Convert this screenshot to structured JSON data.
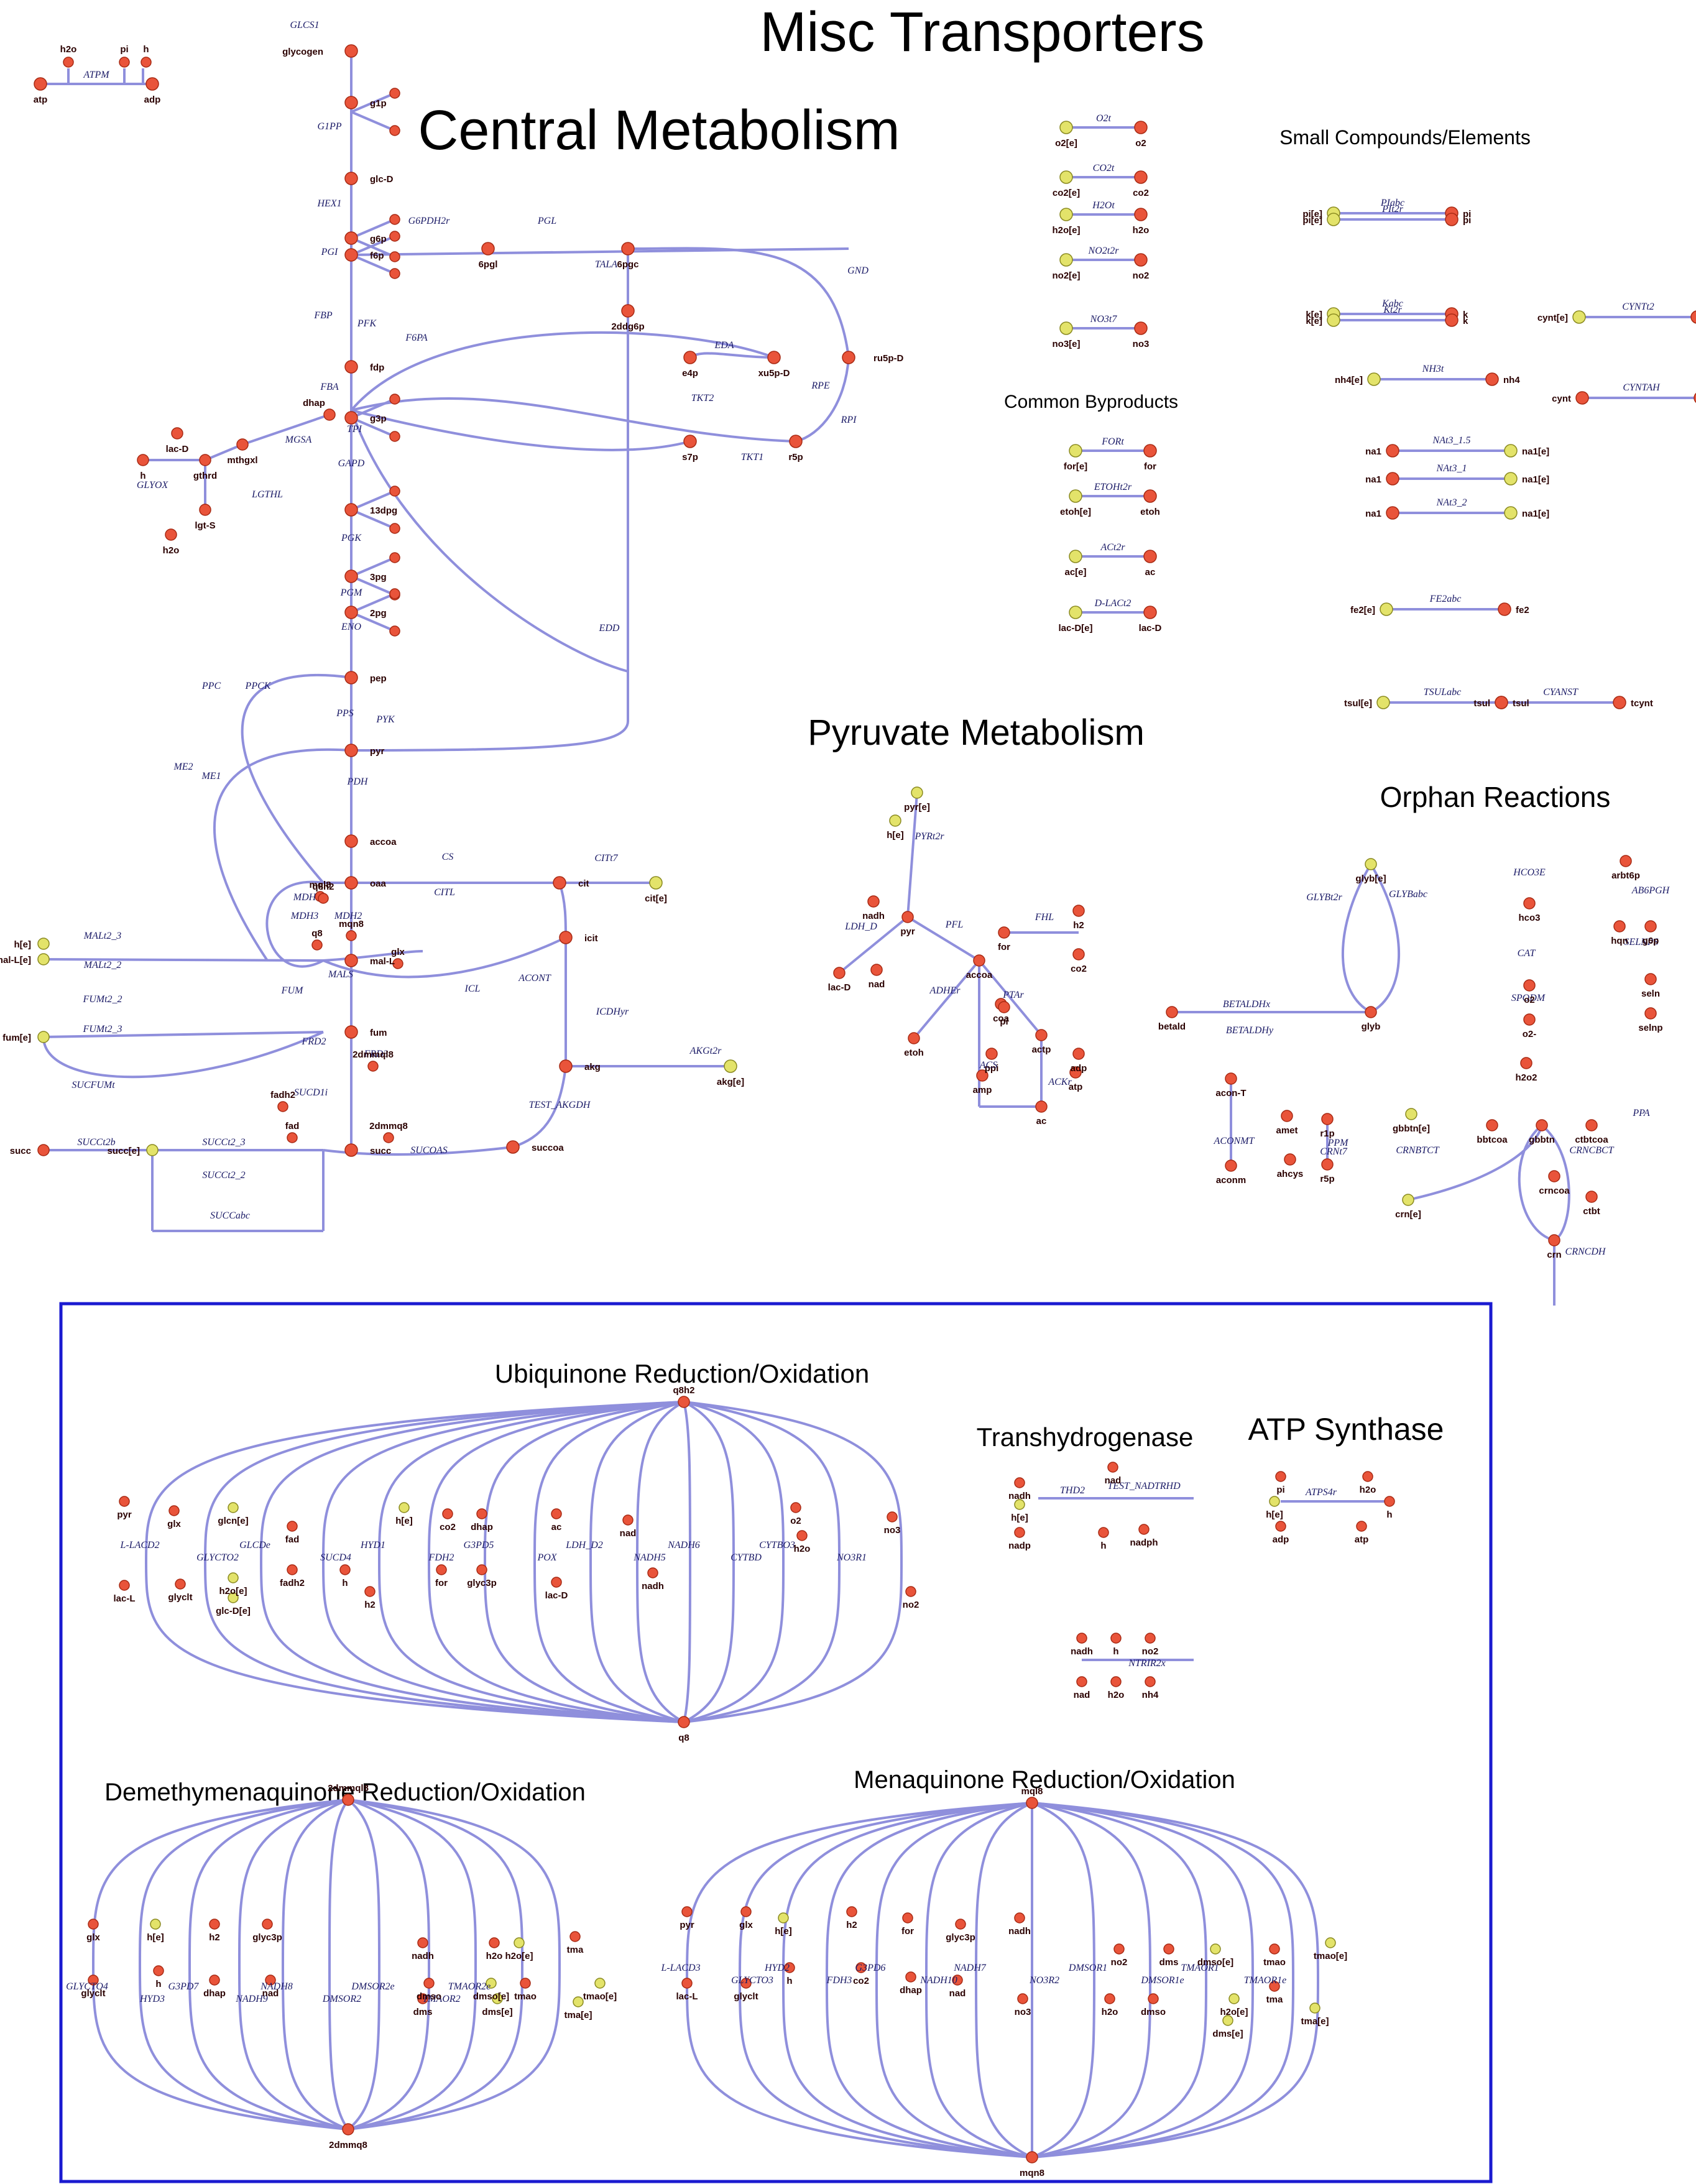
{
  "sections": {
    "central": "Central Metabolism",
    "misc": "Misc Transporters",
    "small": "Small Compounds/Elements",
    "byproducts": "Common Byproducts",
    "pyruvate": "Pyruvate Metabolism",
    "orphan": "Orphan Reactions",
    "ubiquinone": "Ubiquinone Reduction/Oxidation",
    "transhydrogenase": "Transhydrogenase",
    "atp_synthase": "ATP Synthase",
    "demethylmenaquinone": "Demethymenaquinone Reduction/Oxidation",
    "menaquinone": "Menaquinone Reduction/Oxidation"
  },
  "colors": {
    "edge": "#8f8fdc",
    "internal_metabolite": "#e9543a",
    "external_metabolite": "#e3e36a",
    "frame": "#1a1ad0"
  },
  "central": {
    "chain": [
      "glycogen",
      "g1p",
      "glc-D",
      "g6p",
      "f6p",
      "fdp",
      "g3p",
      "13dpg",
      "3pg",
      "2pg",
      "pep",
      "pyr",
      "accoa",
      "oaa",
      "mal-L",
      "fum",
      "succ"
    ],
    "chain_rxns": [
      "GLCS1",
      "G1PP",
      "HEX1",
      "PGI",
      "FBP",
      "FBA",
      "GAPD",
      "PGK",
      "PGM",
      "ENO",
      "PYK",
      "PDH",
      "CS",
      "MDH",
      "FUM",
      "SUCD1i"
    ],
    "tca": [
      "cit",
      "icit",
      "akg",
      "succoa"
    ],
    "tca_rxns": [
      "ACONT",
      "ICDHyr",
      "TEST_AKGDH",
      "SUCOAS",
      "ICL",
      "MALS"
    ],
    "ppp": [
      "6pgl",
      "6pgc",
      "ru5p-D",
      "xu5p-D",
      "r5p",
      "s7p",
      "e4p",
      "2ddg6p"
    ],
    "ppp_rxns": [
      "G6PDH2r",
      "PGL",
      "GND",
      "RPE",
      "RPI",
      "TKT1",
      "TKT2",
      "TALA",
      "EDD",
      "EDA"
    ],
    "atpm": {
      "label": "ATPM",
      "mets": [
        "h2o",
        "pi",
        "h",
        "atp",
        "adp"
      ]
    },
    "side_mets": [
      "dhap",
      "mthgxl",
      "gthrd",
      "lac-D",
      "lgt-S",
      "h",
      "h2o"
    ],
    "side_rxns": [
      "TPI",
      "MGSA",
      "GLYOX",
      "LGTHL",
      "PFK",
      "F6PA",
      "PPC",
      "PPCK",
      "PPS",
      "ME1",
      "ME2",
      "MDH2",
      "MDH3",
      "FRD2",
      "FRD3",
      "CITL"
    ],
    "transport_mets": [
      "h[e]",
      "mal-L[e]",
      "fum[e]",
      "succ[e]",
      "succ"
    ],
    "transport_rxns": [
      "MALt2_3",
      "MALt2_2",
      "FUMt2_2",
      "FUMt2_3",
      "SUCFUMt",
      "SUCCt2b",
      "SUCCt2_3",
      "SUCCt2_2",
      "SUCCabc",
      "CITt7",
      "AKGt2r"
    ],
    "extras": [
      "cit[e]",
      "akg[e]",
      "2dmmql8",
      "2dmmq8",
      "mql8",
      "mqn8",
      "q8h2",
      "q8",
      "fadh2",
      "fad",
      "glx"
    ]
  },
  "misc": {
    "transports": [
      {
        "name": "O2t",
        "in": "o2[e]",
        "out": "o2"
      },
      {
        "name": "CO2t",
        "in": "co2[e]",
        "out": "co2"
      },
      {
        "name": "H2Ot",
        "in": "h2o[e]",
        "out": "h2o"
      },
      {
        "name": "NO2t2r",
        "in": "no2[e]",
        "out": "no2"
      },
      {
        "name": "NO3t7",
        "in": "no3[e]",
        "out": "no3"
      }
    ],
    "byproducts": [
      {
        "name": "FORt",
        "in": "for[e]",
        "out": "for"
      },
      {
        "name": "ETOHt2r",
        "in": "etoh[e]",
        "out": "etoh"
      },
      {
        "name": "ACt2r",
        "in": "ac[e]",
        "out": "ac"
      },
      {
        "name": "D-LACt2",
        "in": "lac-D[e]",
        "out": "lac-D"
      }
    ],
    "small": [
      {
        "name": "PIabc",
        "in": "pi[e]",
        "out": "pi"
      },
      {
        "name": "PIt2r",
        "in": "pi[e]",
        "out": "pi"
      },
      {
        "name": "Kabc",
        "in": "k[e]",
        "out": "k"
      },
      {
        "name": "Kt2r",
        "in": "k[e]",
        "out": "k"
      },
      {
        "name": "NH3t",
        "in": "nh4[e]",
        "out": "nh4"
      },
      {
        "name": "NAt3_1.5",
        "in": "na1",
        "out": "na1[e]"
      },
      {
        "name": "NAt3_1",
        "in": "na1",
        "out": "na1[e]"
      },
      {
        "name": "NAt3_2",
        "in": "na1",
        "out": "na1[e]"
      },
      {
        "name": "FE2abc",
        "in": "fe2[e]",
        "out": "fe2"
      },
      {
        "name": "TSULabc",
        "in": "tsul[e]",
        "out": "tsul"
      },
      {
        "name": "CYANST",
        "in": "tsul",
        "out": "tcynt"
      },
      {
        "name": "CYNTt2",
        "in": "cynt[e]",
        "out": "cynt"
      },
      {
        "name": "CYNTAH",
        "in": "cynt",
        "out": "nh4"
      }
    ]
  },
  "pyruvate": {
    "mets": [
      "pyr[e]",
      "h[e]",
      "pyr",
      "lac-D",
      "nadh",
      "nad",
      "for",
      "accoa",
      "coa",
      "etoh",
      "actp",
      "ac",
      "amp",
      "ppi",
      "h2",
      "co2",
      "adp",
      "atp",
      "pi"
    ],
    "rxns": [
      "PYRt2r",
      "LDH_D",
      "PFL",
      "FHL",
      "ADHEr",
      "PTAr",
      "ACKr",
      "ACS"
    ]
  },
  "orphan": {
    "rxns": [
      "GLYBt2r",
      "GLYBabc",
      "BETALDHx",
      "BETALDHy",
      "HCO3E",
      "CAT",
      "SPODM",
      "AB6PGH",
      "SELNPS",
      "PPA",
      "ACONMT",
      "PPM",
      "CRNt7",
      "CRNBTCT",
      "CRNCBCT",
      "CRNCDH"
    ],
    "mets": [
      "glyb[e]",
      "glyb",
      "betald",
      "hco3",
      "o2",
      "o2-",
      "h2o2",
      "arbt6p",
      "hqn",
      "g6p",
      "seln",
      "selnp",
      "acon-T",
      "aconm",
      "amet",
      "ahcys",
      "r1p",
      "r5p",
      "gbbtn[e]",
      "crn[e]",
      "bbtcoa",
      "gbbtn",
      "crn",
      "crncoa",
      "ctbtcoa",
      "ctbt"
    ]
  },
  "ubiquinone": {
    "top": "q8h2",
    "bottom": "q8",
    "rxns": [
      "L-LACD2",
      "GLYCTO2",
      "GLCDe",
      "SUCD4",
      "HYD1",
      "FDH2",
      "G3PD5",
      "POX",
      "LDH_D2",
      "NADH5",
      "NADH6",
      "CYTBD",
      "CYTBO3",
      "NO3R1"
    ],
    "mets": [
      "pyr",
      "lac-L",
      "glx",
      "glyclt",
      "glcn[e]",
      "h2o[e]",
      "glc-D[e]",
      "fad",
      "fadh2",
      "h[e]",
      "h",
      "h2",
      "co2",
      "for",
      "dhap",
      "glyc3p",
      "ac",
      "lac-D",
      "nad",
      "nadh",
      "o2",
      "h2o",
      "no3",
      "no2"
    ]
  },
  "transhydrogenase": {
    "rxns": [
      "THD2",
      "TEST_NADTRHD"
    ],
    "mets": [
      "nadh",
      "h[e]",
      "nadp",
      "nad",
      "h",
      "nadph"
    ]
  },
  "atp_synthase": {
    "rxns": [
      "ATPS4r"
    ],
    "mets": [
      "pi",
      "h2o",
      "h[e]",
      "h",
      "adp",
      "atp"
    ]
  },
  "nitrite": {
    "rxns": [
      "NTRIR2x"
    ],
    "mets": [
      "nadh",
      "h",
      "no2",
      "nad",
      "h2o",
      "nh4"
    ]
  },
  "demethylmenaquinone": {
    "top": "2dmmql8",
    "bottom": "2dmmq8",
    "rxns": [
      "GLYCTO4",
      "HYD3",
      "G3PD7",
      "NADH9",
      "NADH8",
      "DMSOR2",
      "DMSOR2e",
      "TMAOR2",
      "TMAOR2e"
    ],
    "mets": [
      "glx",
      "glyclt",
      "h[e]",
      "h",
      "h2",
      "dhap",
      "glyc3p",
      "nad",
      "nadh",
      "dmso",
      "dms",
      "h2o",
      "dmso[e]",
      "dms[e]",
      "h2o[e]",
      "tmao",
      "tma",
      "tmao[e]",
      "tma[e]"
    ]
  },
  "menaquinone": {
    "top": "mql8",
    "bottom": "mqn8",
    "rxns": [
      "L-LACD3",
      "GLYCTO3",
      "HYD2",
      "FDH3",
      "G3PD6",
      "NADH10",
      "NADH7",
      "NO3R2",
      "DMSOR1",
      "DMSOR1e",
      "TMAOR1",
      "TMAOR1e"
    ],
    "mets": [
      "pyr",
      "lac-L",
      "glx",
      "glyclt",
      "h[e]",
      "h",
      "h2",
      "co2",
      "for",
      "dhap",
      "glyc3p",
      "nad",
      "nadh",
      "no3",
      "no2",
      "h2o",
      "dmso",
      "dms",
      "dmso[e]",
      "h2o[e]",
      "dms[e]",
      "tmao",
      "tma",
      "tmao[e]",
      "tma[e]"
    ]
  }
}
